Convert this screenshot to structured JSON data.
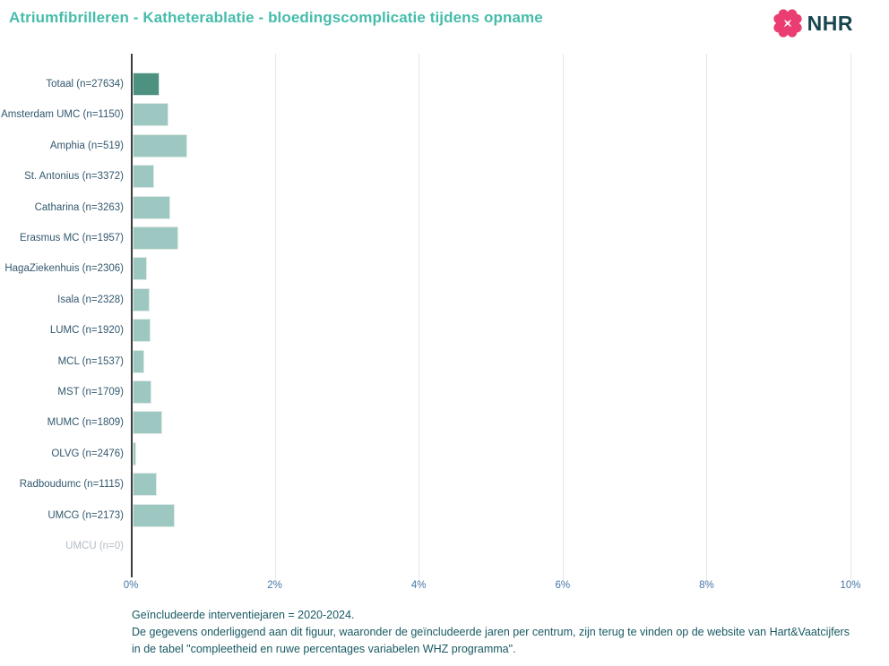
{
  "header": {
    "title": "Atriumfibrilleren - Katheterablatie - bloedingscomplicatie tijdens opname",
    "logo_text": "NHR"
  },
  "colors": {
    "title": "#46bcab",
    "bar_total": "#4d9181",
    "bar_center": "#9dc8c1",
    "category_label": "#33586e",
    "category_label_zero": "#b4bcc3",
    "tick_label": "#4477a5",
    "footer_text": "#175962",
    "gridline": "#e7e7e7",
    "axis": "#3d3d3d",
    "logo_pink": "#ea3d71",
    "logo_text_color": "#17454e"
  },
  "chart_data": {
    "type": "bar",
    "orientation": "horizontal",
    "title": "Atriumfibrilleren - Katheterablatie - bloedingscomplicatie tijdens opname",
    "xlabel": "",
    "ylabel": "",
    "xlim": [
      0,
      10
    ],
    "x_tick_labels": [
      "0%",
      "2%",
      "4%",
      "6%",
      "8%",
      "10%"
    ],
    "grid": "vertical-only",
    "legend": "none",
    "unit": "percent",
    "bars": [
      {
        "label": "Totaal (n=27634)",
        "hospital": "Totaal",
        "n": 27634,
        "value": 0.38,
        "role": "total"
      },
      {
        "label": "Amsterdam UMC (n=1150)",
        "hospital": "Amsterdam UMC",
        "n": 1150,
        "value": 0.5,
        "role": "center"
      },
      {
        "label": "Amphia (n=519)",
        "hospital": "Amphia",
        "n": 519,
        "value": 0.76,
        "role": "center"
      },
      {
        "label": "St. Antonius (n=3372)",
        "hospital": "St. Antonius",
        "n": 3372,
        "value": 0.31,
        "role": "center"
      },
      {
        "label": "Catharina (n=3263)",
        "hospital": "Catharina",
        "n": 3263,
        "value": 0.53,
        "role": "center"
      },
      {
        "label": "Erasmus MC (n=1957)",
        "hospital": "Erasmus MC",
        "n": 1957,
        "value": 0.64,
        "role": "center"
      },
      {
        "label": "HagaZiekenhuis (n=2306)",
        "hospital": "HagaZiekenhuis",
        "n": 2306,
        "value": 0.2,
        "role": "center"
      },
      {
        "label": "Isala (n=2328)",
        "hospital": "Isala",
        "n": 2328,
        "value": 0.24,
        "role": "center"
      },
      {
        "label": "LUMC (n=1920)",
        "hospital": "LUMC",
        "n": 1920,
        "value": 0.25,
        "role": "center"
      },
      {
        "label": "MCL (n=1537)",
        "hospital": "MCL",
        "n": 1537,
        "value": 0.17,
        "role": "center"
      },
      {
        "label": "MST (n=1709)",
        "hospital": "MST",
        "n": 1709,
        "value": 0.27,
        "role": "center"
      },
      {
        "label": "MUMC (n=1809)",
        "hospital": "MUMC",
        "n": 1809,
        "value": 0.42,
        "role": "center"
      },
      {
        "label": "OLVG (n=2476)",
        "hospital": "OLVG",
        "n": 2476,
        "value": 0.06,
        "role": "center"
      },
      {
        "label": "Radboudumc (n=1115)",
        "hospital": "Radboudumc",
        "n": 1115,
        "value": 0.34,
        "role": "center"
      },
      {
        "label": "UMCG (n=2173)",
        "hospital": "UMCG",
        "n": 2173,
        "value": 0.59,
        "role": "center"
      },
      {
        "label": "UMCU (n=0)",
        "hospital": "UMCU",
        "n": 0,
        "value": 0.0,
        "role": "empty"
      }
    ]
  },
  "footer": {
    "lines": [
      "Geïncludeerde interventiejaren = 2020-2024.",
      "De gegevens onderliggend aan dit figuur, waaronder de geïncludeerde jaren per centrum, zijn terug te vinden op de website van Hart&Vaatcijfers",
      "in de tabel \"compleetheid en ruwe percentages variabelen WHZ programma\"."
    ]
  }
}
